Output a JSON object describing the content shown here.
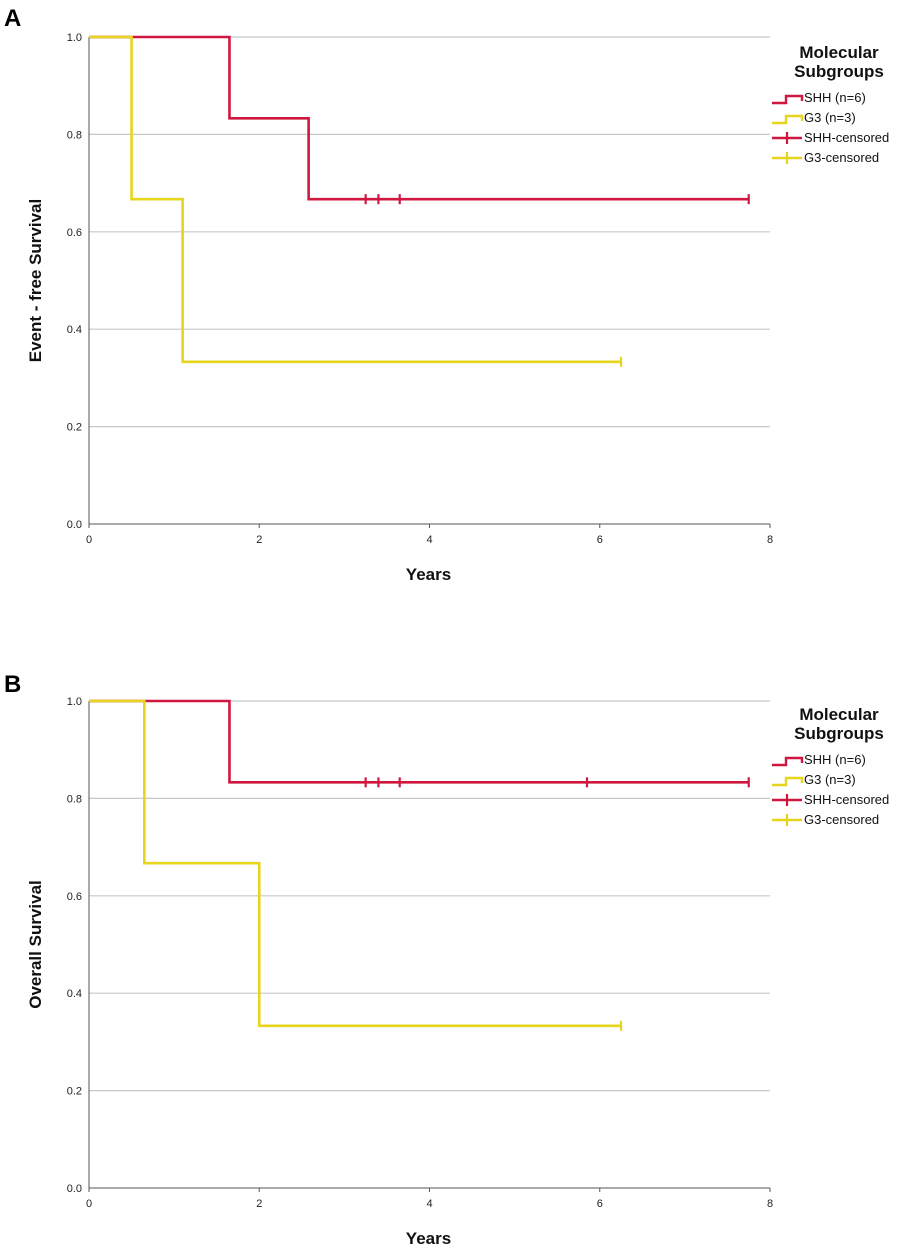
{
  "chart_data": [
    {
      "type": "line",
      "subtype": "kaplan-meier",
      "panel_label": "A",
      "xlabel": "Years",
      "ylabel": "Event - free Survival",
      "xlim": [
        0,
        8
      ],
      "ylim": [
        0,
        1
      ],
      "x_ticks": [
        "0",
        "2",
        "4",
        "6",
        "8"
      ],
      "y_ticks": [
        "0.0",
        "0.2",
        "0.4",
        "0.6",
        "0.8",
        "1.0"
      ],
      "grid": "horizontal",
      "legend": {
        "title_line1": "Molecular",
        "title_line2": "Subgroups",
        "position": "right",
        "entries": [
          "SHH (n=6)",
          "G3 (n=3)",
          "SHH-censored",
          "G3-censored"
        ]
      },
      "series": [
        {
          "name": "SHH (n=6)",
          "color": "#d0173f",
          "steps": [
            [
              0,
              1.0
            ],
            [
              1.65,
              0.833
            ],
            [
              2.58,
              0.667
            ]
          ],
          "end_x": 7.75,
          "censored": [
            [
              3.25,
              0.667
            ],
            [
              3.4,
              0.667
            ],
            [
              3.65,
              0.667
            ],
            [
              7.75,
              0.667
            ]
          ]
        },
        {
          "name": "G3 (n=3)",
          "color": "#e6d51c",
          "steps": [
            [
              0,
              1.0
            ],
            [
              0.5,
              0.667
            ],
            [
              1.1,
              0.333
            ]
          ],
          "end_x": 6.25,
          "censored": [
            [
              6.25,
              0.333
            ]
          ]
        }
      ]
    },
    {
      "type": "line",
      "subtype": "kaplan-meier",
      "panel_label": "B",
      "xlabel": "Years",
      "ylabel": "Overall Survival",
      "xlim": [
        0,
        8
      ],
      "ylim": [
        0,
        1
      ],
      "x_ticks": [
        "0",
        "2",
        "4",
        "6",
        "8"
      ],
      "y_ticks": [
        "0.0",
        "0.2",
        "0.4",
        "0.6",
        "0.8",
        "1.0"
      ],
      "grid": "horizontal",
      "legend": {
        "title_line1": "Molecular",
        "title_line2": "Subgroups",
        "position": "right",
        "entries": [
          "SHH (n=6)",
          "G3 (n=3)",
          "SHH-censored",
          "G3-censored"
        ]
      },
      "series": [
        {
          "name": "SHH (n=6)",
          "color": "#d0173f",
          "steps": [
            [
              0,
              1.0
            ],
            [
              1.65,
              0.833
            ]
          ],
          "end_x": 7.75,
          "censored": [
            [
              3.25,
              0.833
            ],
            [
              3.4,
              0.833
            ],
            [
              3.65,
              0.833
            ],
            [
              5.85,
              0.833
            ],
            [
              7.75,
              0.833
            ]
          ]
        },
        {
          "name": "G3 (n=3)",
          "color": "#e6d51c",
          "steps": [
            [
              0,
              1.0
            ],
            [
              0.65,
              0.667
            ],
            [
              2.0,
              0.333
            ]
          ],
          "end_x": 6.25,
          "censored": [
            [
              6.25,
              0.333
            ]
          ]
        }
      ]
    }
  ]
}
